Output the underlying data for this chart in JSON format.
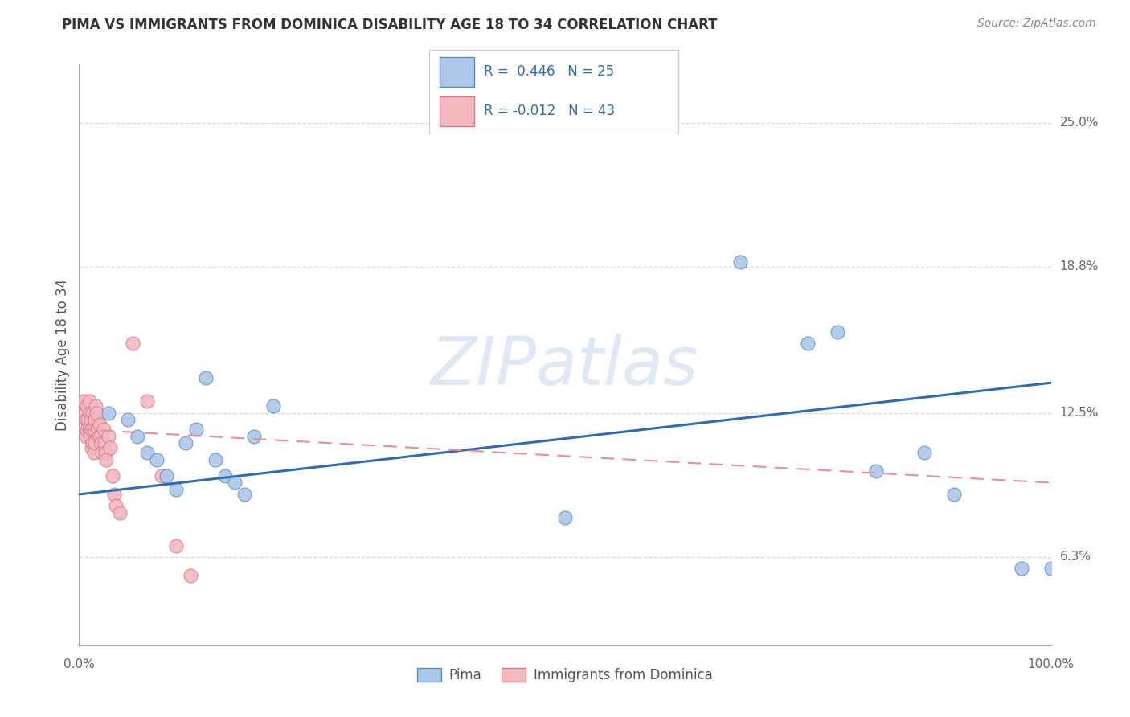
{
  "title": "PIMA VS IMMIGRANTS FROM DOMINICA DISABILITY AGE 18 TO 34 CORRELATION CHART",
  "source": "Source: ZipAtlas.com",
  "ylabel": "Disability Age 18 to 34",
  "ytick_values": [
    0.063,
    0.125,
    0.188,
    0.25
  ],
  "ytick_labels": [
    "6.3%",
    "12.5%",
    "18.8%",
    "25.0%"
  ],
  "xmin": 0.0,
  "xmax": 1.0,
  "ymin": 0.025,
  "ymax": 0.275,
  "watermark": "ZIPatlas",
  "legend_label_blue": "Pima",
  "legend_label_pink": "Immigrants from Dominica",
  "blue_scatter_x": [
    0.13,
    0.5,
    0.68,
    0.75,
    0.78,
    0.82,
    0.87,
    0.9,
    0.97,
    1.0,
    0.03,
    0.05,
    0.06,
    0.07,
    0.08,
    0.09,
    0.1,
    0.11,
    0.12,
    0.14,
    0.15,
    0.16,
    0.17,
    0.18,
    0.2
  ],
  "blue_scatter_y": [
    0.14,
    0.08,
    0.19,
    0.155,
    0.16,
    0.1,
    0.108,
    0.09,
    0.058,
    0.058,
    0.125,
    0.122,
    0.115,
    0.108,
    0.105,
    0.098,
    0.092,
    0.112,
    0.118,
    0.105,
    0.098,
    0.095,
    0.09,
    0.115,
    0.128
  ],
  "pink_scatter_x": [
    0.005,
    0.006,
    0.007,
    0.007,
    0.008,
    0.008,
    0.009,
    0.01,
    0.01,
    0.011,
    0.011,
    0.012,
    0.013,
    0.013,
    0.014,
    0.014,
    0.015,
    0.015,
    0.016,
    0.016,
    0.017,
    0.018,
    0.019,
    0.02,
    0.021,
    0.022,
    0.023,
    0.024,
    0.025,
    0.026,
    0.027,
    0.028,
    0.03,
    0.032,
    0.034,
    0.036,
    0.038,
    0.042,
    0.055,
    0.07,
    0.085,
    0.1,
    0.115
  ],
  "pink_scatter_y": [
    0.13,
    0.125,
    0.122,
    0.115,
    0.128,
    0.118,
    0.122,
    0.13,
    0.118,
    0.125,
    0.115,
    0.122,
    0.118,
    0.11,
    0.125,
    0.112,
    0.118,
    0.108,
    0.122,
    0.112,
    0.128,
    0.125,
    0.118,
    0.115,
    0.12,
    0.115,
    0.112,
    0.108,
    0.118,
    0.112,
    0.108,
    0.105,
    0.115,
    0.11,
    0.098,
    0.09,
    0.085,
    0.082,
    0.155,
    0.13,
    0.098,
    0.068,
    0.055
  ],
  "blue_color": "#aec6e8",
  "pink_color": "#f4b8c1",
  "blue_line_color": "#2e6db4",
  "pink_line_color": "#e8909a",
  "grid_color": "#d8d8d8",
  "background_color": "#ffffff",
  "blue_line_start_y": 0.09,
  "blue_line_end_y": 0.138,
  "pink_line_start_y": 0.118,
  "pink_line_end_y": 0.095
}
